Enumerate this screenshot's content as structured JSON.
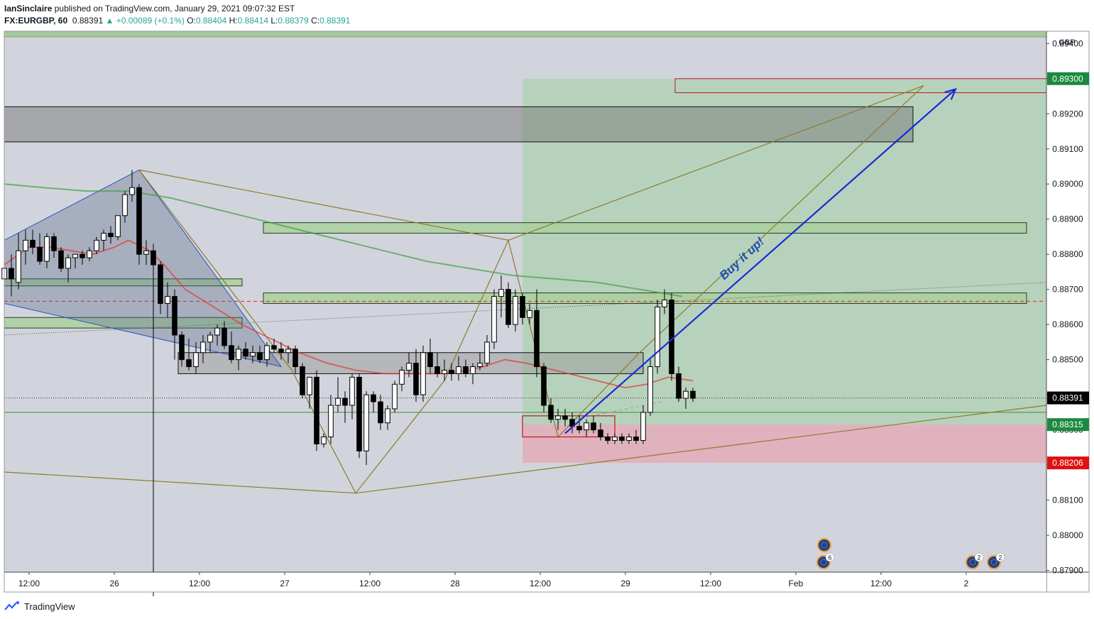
{
  "header": {
    "author": "IanSinclaire",
    "published_text": "published on TradingView.com, January 29, 2021 09:07:32 EST",
    "symbol": "FX:EURGBP, 60",
    "last": "0.88391",
    "arrow": "▲",
    "change": "+0.00089 (+0.1%)",
    "o_label": "O:",
    "o_value": "0.88404",
    "h_label": "H:",
    "h_value": "0.88414",
    "l_label": "L:",
    "l_value": "0.88379",
    "c_label": "C:",
    "c_value": "0.88391"
  },
  "footer": {
    "brand": "TradingView",
    "logo_icon": "tradingview-logo-icon"
  },
  "colors": {
    "bull": "#ffffff",
    "bear": "#000000",
    "ema_fast": "#e53935",
    "ema_slow": "#43a047",
    "pattern_line": "#8d7b2a",
    "arrow": "#1a2bd8",
    "target_label": "#1b8a3e",
    "stop_label": "#e01010"
  },
  "chart_data": {
    "type": "candlestick",
    "currency": "GBP",
    "price_labels": [
      "0.89400",
      "0.89300",
      "0.89200",
      "0.89100",
      "0.89000",
      "0.88900",
      "0.88800",
      "0.88700",
      "0.88600",
      "0.88500",
      "0.88400",
      "0.88300",
      "0.88200",
      "0.88100",
      "0.88000",
      "0.87900"
    ],
    "y_ticks": [
      0.894,
      0.893,
      0.892,
      0.891,
      0.89,
      0.889,
      0.888,
      0.887,
      0.886,
      0.885,
      0.884,
      0.883,
      0.882,
      0.881,
      0.88,
      0.879
    ],
    "ylim": [
      0.87895,
      0.89435
    ],
    "x_ticks": [
      {
        "label": "12:00",
        "hour": -36
      },
      {
        "label": "26",
        "hour": -24
      },
      {
        "label": "12:00",
        "hour": -12
      },
      {
        "label": "27",
        "hour": 0
      },
      {
        "label": "12:00",
        "hour": 12
      },
      {
        "label": "28",
        "hour": 24
      },
      {
        "label": "12:00",
        "hour": 36
      },
      {
        "label": "29",
        "hour": 48
      },
      {
        "label": "12:00",
        "hour": 60
      },
      {
        "label": "Feb",
        "hour": 72
      },
      {
        "label": "12:00",
        "hour": 84
      },
      {
        "label": "2",
        "hour": 96
      }
    ],
    "xlim_hours": [
      -39.5,
      107.3
    ],
    "badges": [
      {
        "label": "0.89300",
        "price": 0.893,
        "kind": "target"
      },
      {
        "label": "0.88391",
        "price": 0.88391,
        "kind": "last"
      },
      {
        "label": "0.88315",
        "price": 0.88315,
        "kind": "target"
      },
      {
        "label": "0.88206",
        "price": 0.88206,
        "kind": "stop"
      }
    ],
    "annotation": {
      "text": "Buy it up!"
    },
    "event_icons": [
      {
        "hour": 76.0,
        "count": ""
      },
      {
        "hour": 75.9,
        "count": "6"
      },
      {
        "hour": 96.9,
        "count": "2"
      },
      {
        "hour": 99.9,
        "count": "2"
      }
    ],
    "candles": [
      [
        -39.5,
        0.8873,
        0.8878,
        0.887,
        0.8876
      ],
      [
        -38.5,
        0.8876,
        0.888,
        0.8868,
        0.8873
      ],
      [
        -37.5,
        0.8872,
        0.8886,
        0.887,
        0.8881
      ],
      [
        -36.5,
        0.8881,
        0.8887,
        0.8877,
        0.8884
      ],
      [
        -35.5,
        0.8884,
        0.8887,
        0.888,
        0.8882
      ],
      [
        -34.5,
        0.8882,
        0.8886,
        0.8877,
        0.8878
      ],
      [
        -33.5,
        0.8878,
        0.8886,
        0.8876,
        0.8885
      ],
      [
        -32.5,
        0.8885,
        0.8886,
        0.8879,
        0.8881
      ],
      [
        -31.5,
        0.8881,
        0.8882,
        0.8875,
        0.8876
      ],
      [
        -30.5,
        0.8876,
        0.888,
        0.8872,
        0.8879
      ],
      [
        -29.5,
        0.8879,
        0.888,
        0.8876,
        0.888
      ],
      [
        -28.5,
        0.888,
        0.8881,
        0.8877,
        0.8879
      ],
      [
        -27.5,
        0.8879,
        0.8882,
        0.8878,
        0.8881
      ],
      [
        -26.5,
        0.8881,
        0.8885,
        0.888,
        0.8884
      ],
      [
        -25.5,
        0.8884,
        0.8887,
        0.8881,
        0.8886
      ],
      [
        -24.5,
        0.8886,
        0.8888,
        0.8883,
        0.8885
      ],
      [
        -23.5,
        0.8885,
        0.8891,
        0.8884,
        0.8891
      ],
      [
        -22.5,
        0.8891,
        0.8898,
        0.8889,
        0.8897
      ],
      [
        -21.5,
        0.8897,
        0.8904,
        0.8895,
        0.8899
      ],
      [
        -20.5,
        0.8899,
        0.89,
        0.8877,
        0.888
      ],
      [
        -19.5,
        0.888,
        0.8884,
        0.8877,
        0.8881
      ],
      [
        -18.5,
        0.8881,
        0.8883,
        0.8775,
        0.8877
      ],
      [
        -17.5,
        0.8877,
        0.8878,
        0.8863,
        0.8866
      ],
      [
        -16.5,
        0.8866,
        0.8872,
        0.8862,
        0.8868
      ],
      [
        -15.5,
        0.8868,
        0.887,
        0.885,
        0.8857
      ],
      [
        -14.5,
        0.8857,
        0.8858,
        0.8848,
        0.885
      ],
      [
        -13.5,
        0.885,
        0.8856,
        0.8847,
        0.8848
      ],
      [
        -12.5,
        0.8848,
        0.8855,
        0.8846,
        0.8852
      ],
      [
        -11.5,
        0.8852,
        0.8857,
        0.8849,
        0.8855
      ],
      [
        -10.5,
        0.8855,
        0.8858,
        0.8852,
        0.8857
      ],
      [
        -9.5,
        0.8857,
        0.886,
        0.8854,
        0.8859
      ],
      [
        -8.5,
        0.8859,
        0.8861,
        0.8853,
        0.8854
      ],
      [
        -7.5,
        0.8854,
        0.8858,
        0.8849,
        0.885
      ],
      [
        -6.5,
        0.885,
        0.8854,
        0.8847,
        0.8853
      ],
      [
        -5.5,
        0.8853,
        0.8855,
        0.885,
        0.8851
      ],
      [
        -4.5,
        0.8851,
        0.8854,
        0.8849,
        0.8852
      ],
      [
        -3.5,
        0.8852,
        0.8854,
        0.8849,
        0.885
      ],
      [
        -2.5,
        0.885,
        0.8855,
        0.8848,
        0.8854
      ],
      [
        -1.5,
        0.8854,
        0.8856,
        0.8852,
        0.8853
      ],
      [
        -0.5,
        0.8853,
        0.8855,
        0.885,
        0.8852
      ],
      [
        0.5,
        0.8852,
        0.8854,
        0.8849,
        0.8853
      ],
      [
        1.5,
        0.8853,
        0.8854,
        0.8846,
        0.8848
      ],
      [
        2.5,
        0.8848,
        0.8849,
        0.8839,
        0.884
      ],
      [
        3.5,
        0.884,
        0.8845,
        0.8836,
        0.8845
      ],
      [
        4.5,
        0.8845,
        0.8847,
        0.8824,
        0.8826
      ],
      [
        5.5,
        0.8826,
        0.8829,
        0.8825,
        0.8828
      ],
      [
        6.5,
        0.8828,
        0.884,
        0.8826,
        0.8837
      ],
      [
        7.5,
        0.8837,
        0.8845,
        0.8835,
        0.8839
      ],
      [
        8.5,
        0.8839,
        0.8841,
        0.8832,
        0.8837
      ],
      [
        9.5,
        0.8837,
        0.8846,
        0.8833,
        0.8845
      ],
      [
        10.5,
        0.8845,
        0.8846,
        0.8822,
        0.8824
      ],
      [
        11.5,
        0.8824,
        0.8841,
        0.882,
        0.884
      ],
      [
        12.5,
        0.884,
        0.8841,
        0.8835,
        0.8838
      ],
      [
        13.5,
        0.8838,
        0.884,
        0.883,
        0.8832
      ],
      [
        14.5,
        0.8832,
        0.8837,
        0.883,
        0.8836
      ],
      [
        15.5,
        0.8836,
        0.8844,
        0.8835,
        0.8843
      ],
      [
        16.5,
        0.8843,
        0.8848,
        0.8841,
        0.8847
      ],
      [
        17.5,
        0.8847,
        0.8852,
        0.8845,
        0.8849
      ],
      [
        18.5,
        0.8849,
        0.8853,
        0.8838,
        0.884
      ],
      [
        19.5,
        0.884,
        0.8854,
        0.8838,
        0.8852
      ],
      [
        20.5,
        0.8852,
        0.8856,
        0.8846,
        0.8848
      ],
      [
        21.5,
        0.8848,
        0.8852,
        0.8845,
        0.8846
      ],
      [
        22.5,
        0.8846,
        0.885,
        0.8844,
        0.8847
      ],
      [
        23.5,
        0.8847,
        0.8849,
        0.8844,
        0.8846
      ],
      [
        24.5,
        0.8846,
        0.8851,
        0.8844,
        0.8848
      ],
      [
        25.5,
        0.8848,
        0.885,
        0.8845,
        0.8846
      ],
      [
        26.5,
        0.8846,
        0.8849,
        0.8843,
        0.8848
      ],
      [
        27.5,
        0.8848,
        0.8852,
        0.8847,
        0.8849
      ],
      [
        28.5,
        0.8849,
        0.8857,
        0.8848,
        0.8855
      ],
      [
        29.5,
        0.8855,
        0.887,
        0.8853,
        0.8868
      ],
      [
        30.5,
        0.8868,
        0.8874,
        0.8862,
        0.887
      ],
      [
        31.5,
        0.887,
        0.8872,
        0.8859,
        0.886
      ],
      [
        32.5,
        0.886,
        0.887,
        0.8858,
        0.8868
      ],
      [
        33.5,
        0.8868,
        0.8869,
        0.886,
        0.8862
      ],
      [
        34.5,
        0.8862,
        0.8866,
        0.886,
        0.8864
      ],
      [
        35.5,
        0.8864,
        0.887,
        0.8845,
        0.8848
      ],
      [
        36.5,
        0.8848,
        0.8849,
        0.8835,
        0.8837
      ],
      [
        37.5,
        0.8837,
        0.8839,
        0.8832,
        0.8833
      ],
      [
        38.5,
        0.8833,
        0.8836,
        0.883,
        0.8834
      ],
      [
        39.5,
        0.8834,
        0.8836,
        0.8831,
        0.8833
      ],
      [
        40.5,
        0.8833,
        0.8835,
        0.8829,
        0.8831
      ],
      [
        41.5,
        0.8831,
        0.8834,
        0.8829,
        0.883
      ],
      [
        42.5,
        0.883,
        0.8833,
        0.8828,
        0.8832
      ],
      [
        43.5,
        0.8832,
        0.8834,
        0.8829,
        0.883
      ],
      [
        44.5,
        0.883,
        0.8832,
        0.8827,
        0.8828
      ],
      [
        45.5,
        0.8828,
        0.8829,
        0.8826,
        0.8827
      ],
      [
        46.5,
        0.8827,
        0.8829,
        0.8826,
        0.8828
      ],
      [
        47.5,
        0.8828,
        0.8829,
        0.8826,
        0.8827
      ],
      [
        48.5,
        0.8827,
        0.8829,
        0.8826,
        0.8828
      ],
      [
        49.5,
        0.8828,
        0.883,
        0.8826,
        0.8827
      ],
      [
        50.5,
        0.8827,
        0.8837,
        0.8826,
        0.8835
      ],
      [
        51.5,
        0.8835,
        0.885,
        0.8834,
        0.8848
      ],
      [
        52.5,
        0.8848,
        0.8867,
        0.8846,
        0.8865
      ],
      [
        53.5,
        0.8865,
        0.887,
        0.8863,
        0.8867
      ],
      [
        54.5,
        0.8867,
        0.8869,
        0.8844,
        0.8846
      ],
      [
        55.5,
        0.8846,
        0.8848,
        0.8838,
        0.8839
      ],
      [
        56.5,
        0.8839,
        0.8842,
        0.8836,
        0.8841
      ],
      [
        57.5,
        0.8841,
        0.8842,
        0.8838,
        0.8839
      ]
    ],
    "ema_fast": [
      [
        -39.5,
        0.8877
      ],
      [
        -36,
        0.8882
      ],
      [
        -33,
        0.8882
      ],
      [
        -30,
        0.8881
      ],
      [
        -27,
        0.888
      ],
      [
        -24,
        0.8882
      ],
      [
        -22,
        0.8884
      ],
      [
        -19,
        0.8881
      ],
      [
        -17,
        0.8877
      ],
      [
        -14,
        0.887
      ],
      [
        -10,
        0.8865
      ],
      [
        -6,
        0.886
      ],
      [
        -2,
        0.8856
      ],
      [
        2,
        0.8852
      ],
      [
        6,
        0.8849
      ],
      [
        10,
        0.8847
      ],
      [
        14,
        0.8846
      ],
      [
        18,
        0.8846
      ],
      [
        22,
        0.8846
      ],
      [
        26,
        0.8847
      ],
      [
        28,
        0.8848
      ],
      [
        31,
        0.885
      ],
      [
        34,
        0.8849
      ],
      [
        36,
        0.8848
      ],
      [
        40,
        0.8846
      ],
      [
        44,
        0.8844
      ],
      [
        48,
        0.8842
      ],
      [
        51,
        0.8843
      ],
      [
        54,
        0.8845
      ],
      [
        57.5,
        0.8844
      ]
    ],
    "ema_slow": [
      [
        -39.5,
        0.89
      ],
      [
        -34,
        0.8899
      ],
      [
        -28,
        0.8898
      ],
      [
        -22,
        0.8898
      ],
      [
        -16,
        0.8896
      ],
      [
        -10,
        0.8893
      ],
      [
        -4,
        0.889
      ],
      [
        2,
        0.8887
      ],
      [
        8,
        0.8884
      ],
      [
        14,
        0.8881
      ],
      [
        20,
        0.8878
      ],
      [
        26,
        0.8876
      ],
      [
        32,
        0.8874
      ],
      [
        38,
        0.8873
      ],
      [
        44,
        0.8872
      ],
      [
        50,
        0.887
      ],
      [
        53,
        0.8869
      ],
      [
        56,
        0.8868
      ]
    ],
    "zones": [
      {
        "kind": "supply_dark",
        "from": -39.5,
        "to": 88.5,
        "top": 0.8922,
        "bottom": 0.8912
      },
      {
        "kind": "green",
        "from": -3.0,
        "to": 104.5,
        "top": 0.8889,
        "bottom": 0.8886
      },
      {
        "kind": "green",
        "from": -3.0,
        "to": 104.5,
        "top": 0.8869,
        "bottom": 0.8866
      },
      {
        "kind": "green",
        "from": -39.5,
        "to": -6.0,
        "top": 0.8873,
        "bottom": 0.8871
      },
      {
        "kind": "green",
        "from": -39.5,
        "to": -6.0,
        "top": 0.8862,
        "bottom": 0.8859
      },
      {
        "kind": "gray",
        "from": -15.0,
        "to": 50.5,
        "top": 0.8852,
        "bottom": 0.8846
      }
    ],
    "position": {
      "entry": 0.88315,
      "target": 0.893,
      "stop": 0.88206,
      "from": 33.5,
      "to": 107.3
    },
    "target_box": {
      "from": 55.0,
      "to": 107.3,
      "top": 0.893,
      "bottom": 0.8926
    },
    "consolidation_box": {
      "from": 33.5,
      "to": 46.5,
      "top": 0.8834,
      "bottom": 0.8828
    },
    "pattern_shaded": [
      [
        -39.5,
        0.8884
      ],
      [
        -20.5,
        0.8904
      ],
      [
        -0.5,
        0.8848
      ],
      [
        -39.5,
        0.8866
      ]
    ],
    "pattern_lines": [
      [
        [
          -20.5,
          0.8904
        ],
        [
          1.0,
          0.8847
        ],
        [
          10.0,
          0.8812
        ],
        [
          22.5,
          0.8844
        ],
        [
          31.5,
          0.8884
        ],
        [
          38.5,
          0.8828
        ],
        [
          50.0,
          0.8852
        ],
        [
          90.0,
          0.8928
        ]
      ],
      [
        [
          -20.5,
          0.8904
        ],
        [
          31.5,
          0.8884
        ],
        [
          90.0,
          0.8928
        ]
      ],
      [
        [
          -39.5,
          0.8818
        ],
        [
          10.0,
          0.8812
        ],
        [
          107.3,
          0.8837
        ]
      ]
    ],
    "trend_lines": [
      {
        "pts": [
          [
            -39.5,
            0.8857
          ],
          [
            107.3,
            0.8872
          ]
        ],
        "style": "dotted"
      },
      {
        "pts": [
          [
            -39.5,
            0.88666
          ],
          [
            107.3,
            0.88666
          ]
        ],
        "style": "dashed_red"
      },
      {
        "pts": [
          [
            -39.5,
            0.88391
          ],
          [
            107.3,
            0.88391
          ]
        ],
        "style": "dotted_dark"
      },
      {
        "pts": [
          [
            -39.5,
            0.8835
          ],
          [
            107.3,
            0.8835
          ]
        ],
        "style": "solid_green"
      },
      {
        "pts": [
          [
            38.5,
            0.8832
          ],
          [
            53.0,
            0.8838
          ]
        ],
        "style": "dashed_faint"
      }
    ],
    "arrow_line": [
      [
        39.5,
        0.8829
      ],
      [
        94.5,
        0.8927
      ]
    ]
  }
}
